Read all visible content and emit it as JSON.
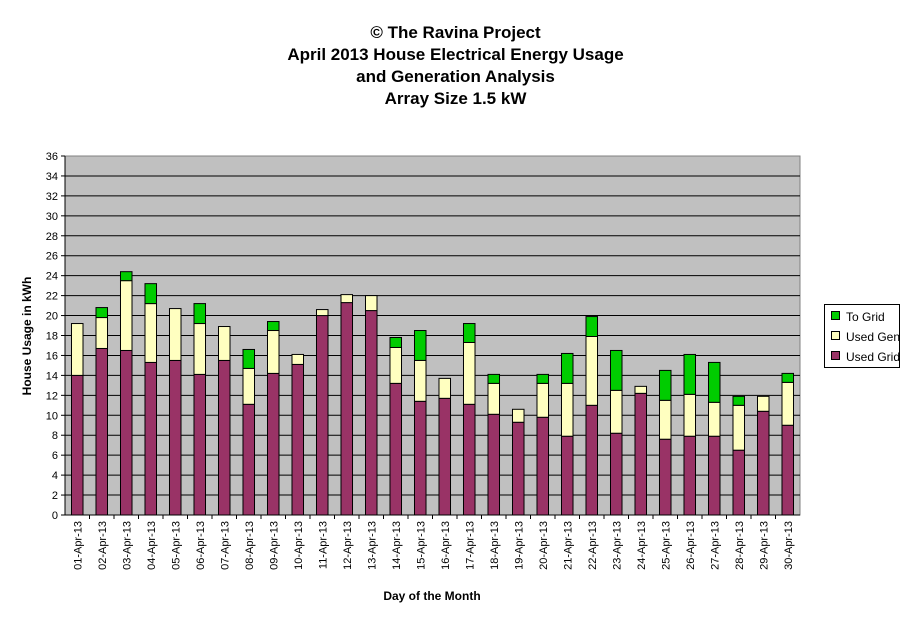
{
  "title_lines": [
    "© The Ravina Project",
    "April 2013 House Electrical Energy Usage",
    "and Generation Analysis",
    "Array Size 1.5 kW"
  ],
  "colors": {
    "plot_background": "#c0c0c0",
    "used_grid": "#993366",
    "used_gen": "#ffffc0",
    "to_grid": "#00cc00",
    "gridline": "#000000"
  },
  "chart_data": {
    "type": "bar",
    "stacked": true,
    "title": "© The Ravina Project April 2013 House Electrical Energy Usage and Generation Analysis Array Size 1.5 kW",
    "xlabel": "Day of the Month",
    "ylabel": "House Usage in kWh",
    "ylim": [
      0,
      36
    ],
    "ytick_step": 2,
    "grid": true,
    "legend_position": "right",
    "categories": [
      "01-Apr-13",
      "02-Apr-13",
      "03-Apr-13",
      "04-Apr-13",
      "05-Apr-13",
      "06-Apr-13",
      "07-Apr-13",
      "08-Apr-13",
      "09-Apr-13",
      "10-Apr-13",
      "11-Apr-13",
      "12-Apr-13",
      "13-Apr-13",
      "14-Apr-13",
      "15-Apr-13",
      "16-Apr-13",
      "17-Apr-13",
      "18-Apr-13",
      "19-Apr-13",
      "20-Apr-13",
      "21-Apr-13",
      "22-Apr-13",
      "23-Apr-13",
      "24-Apr-13",
      "25-Apr-13",
      "26-Apr-13",
      "27-Apr-13",
      "28-Apr-13",
      "29-Apr-13",
      "30-Apr-13"
    ],
    "series": [
      {
        "name": "Used Grid",
        "color": "#993366",
        "values": [
          14.0,
          16.7,
          16.5,
          15.3,
          15.5,
          14.1,
          15.5,
          11.1,
          14.2,
          15.1,
          20.0,
          21.3,
          20.5,
          13.2,
          11.4,
          11.7,
          11.1,
          10.1,
          9.3,
          9.8,
          7.9,
          11.0,
          8.2,
          12.2,
          7.6,
          7.9,
          7.9,
          6.5,
          10.4,
          9.0
        ]
      },
      {
        "name": "Used Gen",
        "color": "#ffffc0",
        "values": [
          5.2,
          3.1,
          7.0,
          5.9,
          5.2,
          5.1,
          3.4,
          3.6,
          4.3,
          1.0,
          0.6,
          0.8,
          1.5,
          3.6,
          4.1,
          2.0,
          6.2,
          3.1,
          1.3,
          3.4,
          5.3,
          6.9,
          4.3,
          0.7,
          3.9,
          4.2,
          3.4,
          4.5,
          1.5,
          4.3
        ]
      },
      {
        "name": "To Grid",
        "color": "#00cc00",
        "values": [
          0,
          1.0,
          0.9,
          2.0,
          0,
          2.0,
          0,
          1.9,
          0.9,
          0,
          0,
          0,
          0,
          1.0,
          3.0,
          0,
          1.9,
          0.9,
          0,
          0.9,
          3.0,
          2.0,
          4.0,
          0,
          3.0,
          4.0,
          4.0,
          0.9,
          0,
          0.9
        ]
      }
    ],
    "legend": [
      "To Grid",
      "Used Gen",
      "Used Grid"
    ]
  }
}
